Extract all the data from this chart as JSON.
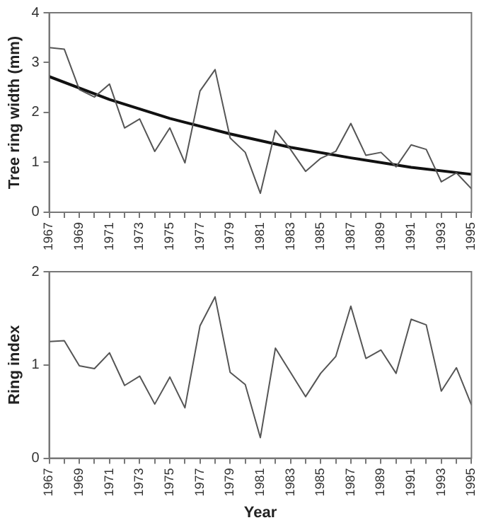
{
  "chart_data": [
    {
      "type": "line",
      "ylabel": "Tree ring width (mm)",
      "x": [
        1967,
        1968,
        1969,
        1970,
        1971,
        1972,
        1973,
        1974,
        1975,
        1976,
        1977,
        1978,
        1979,
        1980,
        1981,
        1982,
        1983,
        1984,
        1985,
        1986,
        1987,
        1988,
        1989,
        1990,
        1991,
        1992,
        1993,
        1994,
        1995
      ],
      "series": [
        {
          "color": "#555555",
          "values": [
            3.3,
            3.27,
            2.46,
            2.31,
            2.57,
            1.69,
            1.87,
            1.22,
            1.69,
            0.99,
            2.43,
            2.86,
            1.49,
            1.2,
            0.38,
            1.64,
            1.26,
            0.82,
            1.08,
            1.22,
            1.78,
            1.14,
            1.2,
            0.91,
            1.35,
            1.26,
            0.61,
            0.79,
            0.47
          ]
        },
        {
          "type": "line",
          "color": "#111111",
          "x": [
            1967,
            1971,
            1975,
            1979,
            1983,
            1987,
            1991,
            1995
          ],
          "values": [
            2.72,
            2.26,
            1.88,
            1.57,
            1.3,
            1.09,
            0.9,
            0.76
          ]
        }
      ],
      "xlim": [
        1967,
        1995
      ],
      "xticks": [
        1967,
        {
          "value": 1968,
          "label": null
        },
        1969,
        {
          "value": 1970,
          "label": null
        },
        1971,
        {
          "value": 1972,
          "label": null
        },
        1973,
        {
          "value": 1974,
          "label": null
        },
        1975,
        {
          "value": 1976,
          "label": null
        },
        1977,
        {
          "value": 1978,
          "label": null
        },
        1979,
        {
          "value": 1980,
          "label": null
        },
        1981,
        {
          "value": 1982,
          "label": null
        },
        1983,
        {
          "value": 1984,
          "label": null
        },
        1985,
        {
          "value": 1986,
          "label": null
        },
        1987,
        {
          "value": 1988,
          "label": null
        },
        1989,
        {
          "value": 1990,
          "label": null
        },
        1991,
        {
          "value": 1992,
          "label": null
        },
        1993,
        {
          "value": 1994,
          "label": null
        },
        1995
      ],
      "ylim": [
        0,
        4
      ],
      "yticks": [
        0,
        1,
        2,
        3,
        4
      ],
      "marker": "none",
      "line_style": "solid"
    },
    {
      "type": "line",
      "xlabel": "Year",
      "ylabel": "Ring index",
      "x": [
        1967,
        1968,
        1969,
        1970,
        1971,
        1972,
        1973,
        1974,
        1975,
        1976,
        1977,
        1978,
        1979,
        1980,
        1981,
        1982,
        1983,
        1984,
        1985,
        1986,
        1987,
        1988,
        1989,
        1990,
        1991,
        1992,
        1993,
        1994,
        1995
      ],
      "series": [
        {
          "color": "#555555",
          "values": [
            1.25,
            1.26,
            0.99,
            0.96,
            1.13,
            0.78,
            0.88,
            0.58,
            0.87,
            0.54,
            1.42,
            1.73,
            0.92,
            0.79,
            0.22,
            1.18,
            0.92,
            0.66,
            0.91,
            1.09,
            1.63,
            1.07,
            1.16,
            0.91,
            1.49,
            1.43,
            0.72,
            0.97,
            0.57
          ]
        }
      ],
      "xlim": [
        1967,
        1995
      ],
      "xticks": [
        1967,
        {
          "value": 1968,
          "label": null
        },
        1969,
        {
          "value": 1970,
          "label": null
        },
        1971,
        {
          "value": 1972,
          "label": null
        },
        1973,
        {
          "value": 1974,
          "label": null
        },
        1975,
        {
          "value": 1976,
          "label": null
        },
        1977,
        {
          "value": 1978,
          "label": null
        },
        1979,
        {
          "value": 1980,
          "label": null
        },
        1981,
        {
          "value": 1982,
          "label": null
        },
        1983,
        {
          "value": 1984,
          "label": null
        },
        1985,
        {
          "value": 1986,
          "label": null
        },
        1987,
        {
          "value": 1988,
          "label": null
        },
        1989,
        {
          "value": 1990,
          "label": null
        },
        1991,
        {
          "value": 1992,
          "label": null
        },
        1993,
        {
          "value": 1994,
          "label": null
        },
        1995
      ],
      "ylim": [
        0,
        2
      ],
      "yticks": [
        0,
        1,
        2
      ],
      "marker": "none",
      "line_style": "solid"
    }
  ]
}
